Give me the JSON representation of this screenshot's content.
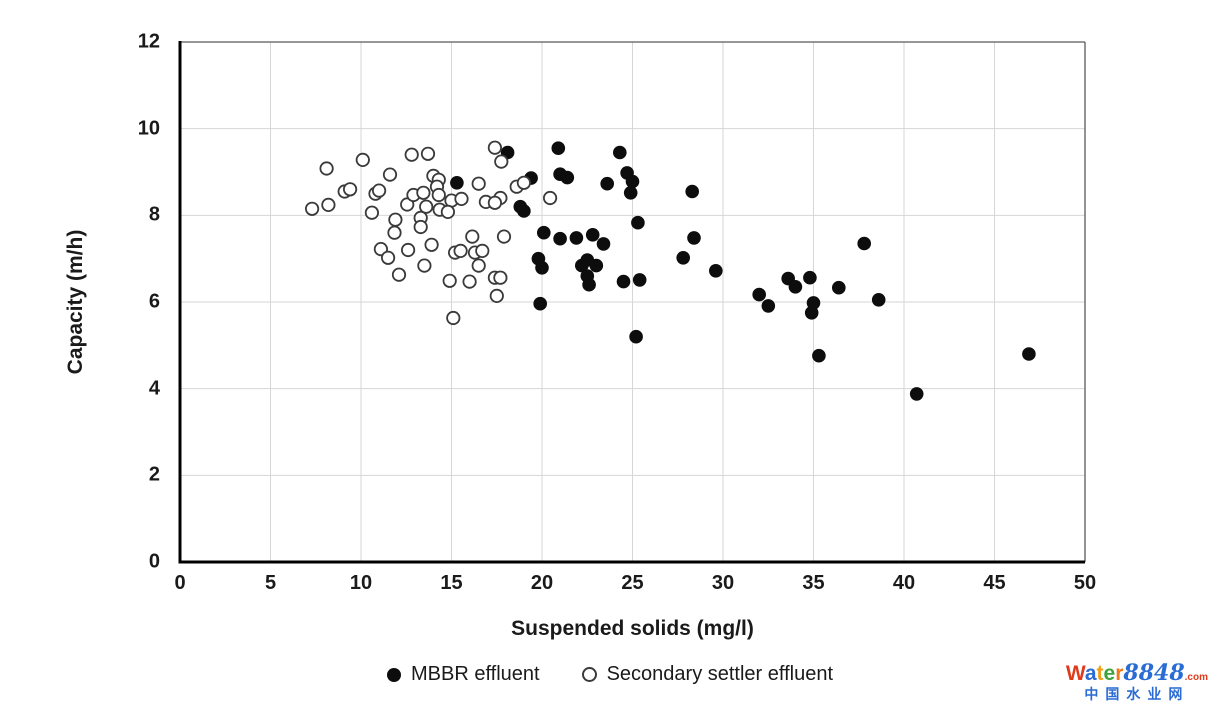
{
  "chart_data": {
    "type": "scatter",
    "title": "",
    "xlabel": "Suspended solids (mg/l)",
    "ylabel": "Capacity (m/h)",
    "xlim": [
      0,
      50
    ],
    "ylim": [
      0,
      12
    ],
    "x_ticks": [
      0,
      5,
      10,
      15,
      20,
      25,
      30,
      35,
      40,
      45,
      50
    ],
    "y_ticks": [
      0,
      2,
      4,
      6,
      8,
      10,
      12
    ],
    "grid": true,
    "grid_color": "#d6d6d6",
    "frame_thin_color": "#595959",
    "frame_thick_color": "#000000",
    "legend_position": "bottom-center",
    "series": [
      {
        "name": "MBBR effluent",
        "marker": "filled-circle",
        "color": "#0d0d0d",
        "points": [
          [
            15.3,
            8.75
          ],
          [
            18.1,
            9.45
          ],
          [
            19.4,
            8.86
          ],
          [
            18.8,
            8.2
          ],
          [
            19.0,
            8.1
          ],
          [
            20.9,
            9.55
          ],
          [
            24.3,
            9.45
          ],
          [
            21.0,
            8.95
          ],
          [
            21.4,
            8.87
          ],
          [
            23.6,
            8.73
          ],
          [
            24.7,
            8.98
          ],
          [
            25.0,
            8.78
          ],
          [
            24.9,
            8.52
          ],
          [
            28.3,
            8.55
          ],
          [
            25.3,
            7.83
          ],
          [
            20.1,
            7.6
          ],
          [
            21.0,
            7.46
          ],
          [
            21.9,
            7.48
          ],
          [
            22.8,
            7.55
          ],
          [
            23.4,
            7.34
          ],
          [
            28.4,
            7.48
          ],
          [
            27.8,
            7.02
          ],
          [
            29.6,
            6.72
          ],
          [
            19.8,
            7.0
          ],
          [
            20.0,
            6.79
          ],
          [
            22.2,
            6.84
          ],
          [
            22.5,
            6.97
          ],
          [
            23.0,
            6.84
          ],
          [
            22.5,
            6.6
          ],
          [
            22.6,
            6.4
          ],
          [
            24.5,
            6.47
          ],
          [
            25.4,
            6.51
          ],
          [
            19.9,
            5.96
          ],
          [
            25.2,
            5.2
          ],
          [
            37.8,
            7.35
          ],
          [
            33.6,
            6.54
          ],
          [
            34.0,
            6.35
          ],
          [
            34.8,
            6.56
          ],
          [
            36.4,
            6.33
          ],
          [
            32.0,
            6.17
          ],
          [
            32.5,
            5.91
          ],
          [
            38.6,
            6.05
          ],
          [
            35.0,
            5.98
          ],
          [
            34.9,
            5.75
          ],
          [
            35.3,
            4.76
          ],
          [
            46.9,
            4.8
          ],
          [
            40.7,
            3.88
          ]
        ]
      },
      {
        "name": "Secondary settler effluent",
        "marker": "open-circle",
        "color": "#3a3a3a",
        "points": [
          [
            7.3,
            8.15
          ],
          [
            8.1,
            9.08
          ],
          [
            8.2,
            8.24
          ],
          [
            9.1,
            8.55
          ],
          [
            9.4,
            8.6
          ],
          [
            10.1,
            9.28
          ],
          [
            10.6,
            8.06
          ],
          [
            10.8,
            8.5
          ],
          [
            11.0,
            8.57
          ],
          [
            11.6,
            8.94
          ],
          [
            11.9,
            7.9
          ],
          [
            11.85,
            7.6
          ],
          [
            11.1,
            7.22
          ],
          [
            11.5,
            7.02
          ],
          [
            12.1,
            6.63
          ],
          [
            12.55,
            8.25
          ],
          [
            12.6,
            7.2
          ],
          [
            12.8,
            9.4
          ],
          [
            13.7,
            9.42
          ],
          [
            12.9,
            8.47
          ],
          [
            13.45,
            8.52
          ],
          [
            13.3,
            7.94
          ],
          [
            13.3,
            7.73
          ],
          [
            13.9,
            7.32
          ],
          [
            13.5,
            6.84
          ],
          [
            14.0,
            8.91
          ],
          [
            14.3,
            8.82
          ],
          [
            14.2,
            8.66
          ],
          [
            14.3,
            8.47
          ],
          [
            14.35,
            8.13
          ],
          [
            13.6,
            8.2
          ],
          [
            15.0,
            8.34
          ],
          [
            15.55,
            8.38
          ],
          [
            14.8,
            8.08
          ],
          [
            15.2,
            7.14
          ],
          [
            15.5,
            7.18
          ],
          [
            16.3,
            7.14
          ],
          [
            16.7,
            7.18
          ],
          [
            16.5,
            6.84
          ],
          [
            14.9,
            6.49
          ],
          [
            16.0,
            6.47
          ],
          [
            15.1,
            5.63
          ],
          [
            16.15,
            7.51
          ],
          [
            17.9,
            7.51
          ],
          [
            17.4,
            6.56
          ],
          [
            17.7,
            6.56
          ],
          [
            17.5,
            6.14
          ],
          [
            16.5,
            8.73
          ],
          [
            17.4,
            9.56
          ],
          [
            17.75,
            9.24
          ],
          [
            18.6,
            8.66
          ],
          [
            19.0,
            8.75
          ],
          [
            16.9,
            8.31
          ],
          [
            17.7,
            8.4
          ],
          [
            17.4,
            8.29
          ],
          [
            20.45,
            8.4
          ]
        ]
      }
    ]
  },
  "watermark": {
    "brand": [
      {
        "ch": "W",
        "color": "#e03a1c"
      },
      {
        "ch": "a",
        "color": "#2a6bd4"
      },
      {
        "ch": "t",
        "color": "#f0a018"
      },
      {
        "ch": "e",
        "color": "#3da23a"
      },
      {
        "ch": "r",
        "color": "#f07818"
      }
    ],
    "number": "8848",
    "number_color": "#2a6bd4",
    "tld": ".com",
    "tld_color": "#e03a1c",
    "subtitle": "中国水业网",
    "subtitle_color": "#2a6bd4"
  }
}
